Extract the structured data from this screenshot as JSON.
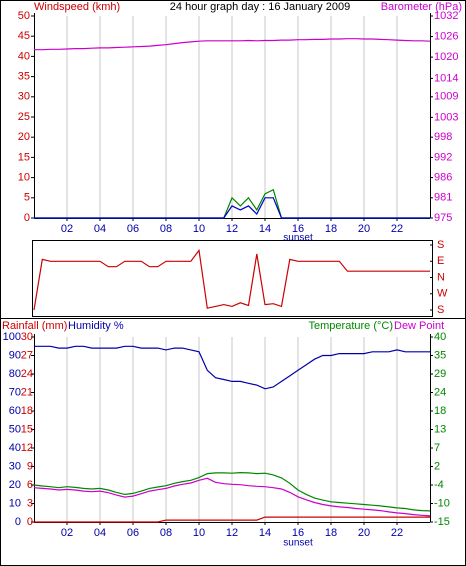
{
  "chart_data": [
    {
      "type": "line",
      "title": "24 hour graph day : 16 January 2009",
      "ylabel": "Windspeed (kmh)",
      "y2label": "Barometer (hPa)",
      "ycolor": "#cc0000",
      "y2color": "#cc00cc",
      "xgrid": true,
      "xlim": [
        0,
        24
      ],
      "xticks": [
        {
          "value": 2,
          "label": "02"
        },
        {
          "value": 4,
          "label": "04"
        },
        {
          "value": 6,
          "label": "06"
        },
        {
          "value": 8,
          "label": "08"
        },
        {
          "value": 10,
          "label": "10"
        },
        {
          "value": 12,
          "label": "12"
        },
        {
          "value": 14,
          "label": "14"
        },
        {
          "value": 16,
          "label": "16"
        },
        {
          "value": 18,
          "label": "18"
        },
        {
          "value": 20,
          "label": "20"
        },
        {
          "value": 22,
          "label": "22"
        }
      ],
      "ylim": [
        0,
        50
      ],
      "yticks": [
        0,
        5,
        10,
        15,
        20,
        25,
        30,
        35,
        40,
        45,
        50
      ],
      "y2lim": [
        975,
        1032
      ],
      "y2ticks": [
        975,
        {
          "value": 980.7,
          "label": "981"
        },
        {
          "value": 986.4,
          "label": "986"
        },
        {
          "value": 992.1,
          "label": "992"
        },
        {
          "value": 997.8,
          "label": "998"
        },
        {
          "value": 1003.4,
          "label": "1003"
        },
        {
          "value": 1009.2,
          "label": "1009"
        },
        {
          "value": 1014.4,
          "label": "1014"
        },
        {
          "value": 1020.4,
          "label": "1020"
        },
        {
          "value": 1026.2,
          "label": "1026"
        },
        1032
      ],
      "annotations": [
        {
          "text": "sunset",
          "x": 16
        }
      ],
      "x": [
        0,
        0.5,
        1,
        1.5,
        2,
        2.5,
        3,
        3.5,
        4,
        4.5,
        5,
        5.5,
        6,
        6.5,
        7,
        7.5,
        8,
        8.5,
        9,
        9.5,
        10,
        10.5,
        11,
        11.5,
        12,
        12.5,
        13,
        13.5,
        14,
        14.5,
        15,
        15.5,
        16,
        16.5,
        17,
        17.5,
        18,
        18.5,
        19,
        19.5,
        20,
        20.5,
        21,
        21.5,
        22,
        22.5,
        23,
        23.5,
        24
      ],
      "series": [
        {
          "color": "#008800",
          "values": [
            0,
            0,
            0,
            0,
            0,
            0,
            0,
            0,
            0,
            0,
            0,
            0,
            0,
            0,
            0,
            0,
            0,
            0,
            0,
            0,
            0,
            0,
            0,
            0,
            5,
            3,
            5,
            2,
            6,
            7,
            0,
            0,
            0,
            0,
            0,
            0,
            0,
            0,
            0,
            0,
            0,
            0,
            0,
            0,
            0,
            0,
            0,
            0,
            0
          ]
        },
        {
          "color": "#0000cc",
          "values": [
            0,
            0,
            0,
            0,
            0,
            0,
            0,
            0,
            0,
            0,
            0,
            0,
            0,
            0,
            0,
            0,
            0,
            0,
            0,
            0,
            0,
            0,
            0,
            0,
            3,
            2,
            3,
            1,
            5,
            5,
            0,
            0,
            0,
            0,
            0,
            0,
            0,
            0,
            0,
            0,
            0,
            0,
            0,
            0,
            0,
            0,
            0,
            0,
            0
          ]
        },
        {
          "color": "#cc00cc",
          "axis": "y2",
          "values": [
            1022.5,
            1022.5,
            1022.6,
            1022.6,
            1022.7,
            1022.8,
            1022.8,
            1022.9,
            1023.0,
            1023.0,
            1023.1,
            1023.2,
            1023.3,
            1023.4,
            1023.5,
            1023.7,
            1023.9,
            1024.2,
            1024.5,
            1024.7,
            1024.9,
            1025.0,
            1025.0,
            1025.0,
            1025.0,
            1025.0,
            1025.1,
            1025.0,
            1025.1,
            1025.1,
            1025.2,
            1025.2,
            1025.3,
            1025.3,
            1025.4,
            1025.4,
            1025.5,
            1025.5,
            1025.6,
            1025.6,
            1025.5,
            1025.5,
            1025.4,
            1025.3,
            1025.2,
            1025.1,
            1025.0,
            1025.0,
            1024.9
          ]
        }
      ]
    },
    {
      "type": "line",
      "ycolor": "#cc0000",
      "xlim": [
        0,
        24
      ],
      "ylim": [
        -180,
        180
      ],
      "yticks": [
        {
          "value": 180,
          "label": "S"
        },
        {
          "value": 90,
          "label": "E"
        },
        {
          "value": 0,
          "label": "N"
        },
        {
          "value": -90,
          "label": "W"
        },
        {
          "value": -180,
          "label": "S"
        }
      ],
      "x": [
        0,
        0.5,
        1,
        1.5,
        2,
        2.5,
        3,
        3.5,
        4,
        4.5,
        5,
        5.5,
        6,
        6.5,
        7,
        7.5,
        8,
        8.5,
        9,
        9.5,
        10,
        10.5,
        11,
        11.5,
        12,
        12.5,
        13,
        13.5,
        14,
        14.5,
        15,
        15.5,
        16,
        16.5,
        17,
        17.5,
        18,
        18.5,
        19,
        19.5,
        20,
        20.5,
        21,
        21.5,
        22,
        22.5,
        23,
        23.5,
        24
      ],
      "series": [
        {
          "color": "#cc0000",
          "values": [
            -180,
            100,
            90,
            90,
            90,
            90,
            90,
            90,
            90,
            60,
            60,
            90,
            90,
            90,
            60,
            60,
            90,
            90,
            90,
            90,
            150,
            -170,
            -160,
            -150,
            -160,
            -140,
            -155,
            130,
            -150,
            -145,
            -160,
            100,
            90,
            90,
            90,
            90,
            90,
            90,
            35,
            35,
            35,
            35,
            35,
            35,
            35,
            35,
            35,
            35,
            35
          ]
        }
      ]
    },
    {
      "type": "line",
      "ycolor": "#0000aa",
      "y2color": "#008800",
      "y3color": "#cc0000",
      "xgrid": true,
      "xlim": [
        0,
        24
      ],
      "xticks": [
        {
          "value": 2,
          "label": "02"
        },
        {
          "value": 4,
          "label": "04"
        },
        {
          "value": 6,
          "label": "06"
        },
        {
          "value": 8,
          "label": "08"
        },
        {
          "value": 10,
          "label": "10"
        },
        {
          "value": 12,
          "label": "12"
        },
        {
          "value": 14,
          "label": "14"
        },
        {
          "value": 16,
          "label": "16"
        },
        {
          "value": 18,
          "label": "18"
        },
        {
          "value": 20,
          "label": "20"
        },
        {
          "value": 22,
          "label": "22"
        }
      ],
      "ylim": [
        0,
        100
      ],
      "yticks": [
        0,
        10,
        20,
        30,
        40,
        50,
        60,
        70,
        80,
        90,
        100
      ],
      "y3lim": [
        0,
        30
      ],
      "y3ticks": [
        0,
        3,
        6,
        9,
        12,
        15,
        18,
        21,
        24,
        27,
        30
      ],
      "y2lim": [
        -15,
        40
      ],
      "y2ticks": [
        -15,
        {
          "value": -9.5,
          "label": "-10"
        },
        -4,
        {
          "value": 1.5,
          "label": "2"
        },
        7,
        {
          "value": 12.5,
          "label": "13"
        },
        18,
        {
          "value": 23.5,
          "label": "24"
        },
        29,
        {
          "value": 34.5,
          "label": "35"
        },
        40
      ],
      "annotations": [
        {
          "text": "sunset",
          "x": 16
        }
      ],
      "x": [
        0,
        0.5,
        1,
        1.5,
        2,
        2.5,
        3,
        3.5,
        4,
        4.5,
        5,
        5.5,
        6,
        6.5,
        7,
        7.5,
        8,
        8.5,
        9,
        9.5,
        10,
        10.5,
        11,
        11.5,
        12,
        12.5,
        13,
        13.5,
        14,
        14.5,
        15,
        15.5,
        16,
        16.5,
        17,
        17.5,
        18,
        18.5,
        19,
        19.5,
        20,
        20.5,
        21,
        21.5,
        22,
        22.5,
        23,
        23.5,
        24
      ],
      "series": [
        {
          "name": "Rainfall (mm)",
          "color": "#cc0000",
          "axis": "y3",
          "values": [
            0,
            0,
            0,
            0,
            0,
            0,
            0,
            0,
            0,
            0,
            0,
            0,
            0,
            0,
            0,
            0,
            0.3,
            0.3,
            0.3,
            0.3,
            0.3,
            0.3,
            0.3,
            0.3,
            0.3,
            0.3,
            0.3,
            0.3,
            0.8,
            0.8,
            0.8,
            0.8,
            0.8,
            0.8,
            0.8,
            0.8,
            0.8,
            0.8,
            0.8,
            0.8,
            0.8,
            0.8,
            0.8,
            0.8,
            0.8,
            0.8,
            0.8,
            0.8,
            0.8
          ]
        },
        {
          "name": "Humidity %",
          "color": "#0000aa",
          "values": [
            95,
            95,
            95,
            94,
            94,
            95,
            95,
            94,
            94,
            94,
            94,
            95,
            95,
            94,
            94,
            94,
            93,
            94,
            94,
            93,
            92,
            82,
            78,
            77,
            76,
            76,
            75,
            74,
            72,
            73,
            76,
            79,
            82,
            85,
            88,
            90,
            90,
            91,
            91,
            91,
            91,
            92,
            92,
            92,
            93,
            92,
            92,
            92,
            92
          ]
        },
        {
          "name": "Temperature (°C)",
          "color": "#008800",
          "axis": "y2",
          "values": [
            -4,
            -4.3,
            -4.5,
            -4.8,
            -4.5,
            -4.7,
            -5,
            -5.2,
            -5,
            -5.5,
            -6.2,
            -6.8,
            -6.5,
            -5.8,
            -5,
            -4.6,
            -4.2,
            -3.5,
            -3,
            -2.6,
            -1.8,
            -0.6,
            -0.4,
            -0.4,
            -0.5,
            -0.3,
            -0.4,
            -0.6,
            -0.5,
            -1.0,
            -1.9,
            -3.5,
            -5.5,
            -6.8,
            -7.9,
            -8.5,
            -9,
            -9.2,
            -9.4,
            -9.6,
            -9.8,
            -10,
            -10.2,
            -10.5,
            -10.8,
            -11,
            -11.4,
            -11.6,
            -11.7
          ]
        },
        {
          "name": "Dew Point",
          "color": "#cc00cc",
          "axis": "y2",
          "values": [
            -4.8,
            -5,
            -5.2,
            -5.5,
            -5.3,
            -5.5,
            -5.8,
            -6,
            -5.8,
            -6.3,
            -7,
            -7.6,
            -7.3,
            -6.6,
            -5.8,
            -5.4,
            -5,
            -4.3,
            -3.8,
            -3.4,
            -2.6,
            -2,
            -3.2,
            -3.6,
            -3.8,
            -3.9,
            -4.2,
            -4.4,
            -4.5,
            -4.8,
            -5.2,
            -6.2,
            -7.5,
            -8.4,
            -9.2,
            -9.8,
            -10.2,
            -10.5,
            -10.7,
            -11,
            -11.2,
            -11.4,
            -11.6,
            -12,
            -12.3,
            -12.5,
            -12.8,
            -13,
            -13.2
          ]
        }
      ]
    }
  ]
}
